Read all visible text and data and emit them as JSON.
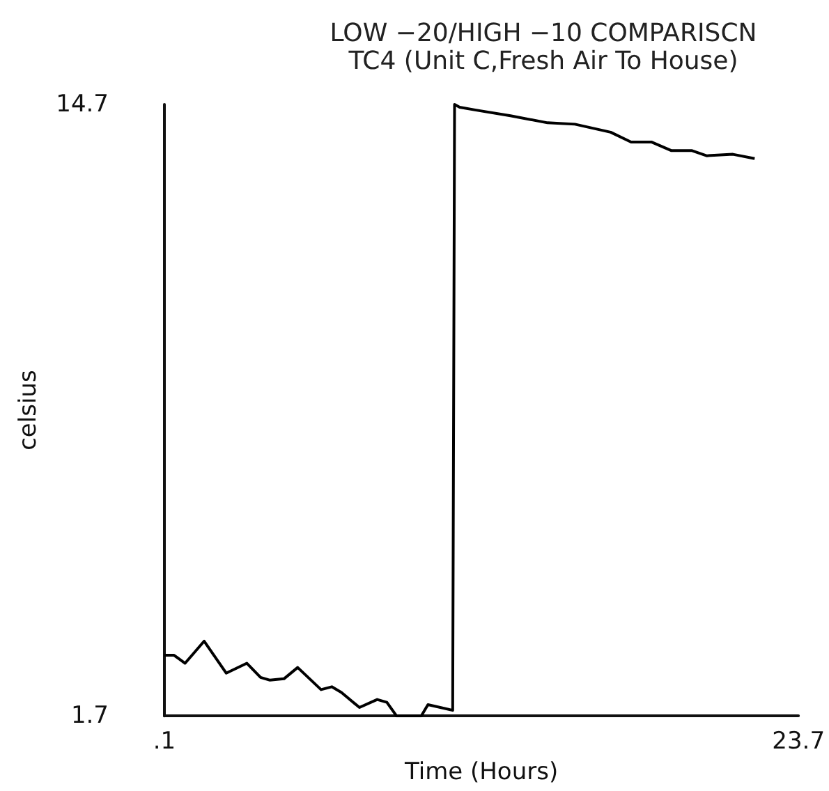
{
  "chart_data": {
    "type": "line",
    "title": "LOW −20/HIGH −10 COMPARISCN",
    "subtitle": "TC4 (Unit C,Fresh Air To House)",
    "xlabel": "Time (Hours)",
    "ylabel": "celsius",
    "xlim": [
      0.1,
      23.7
    ],
    "xticks": [
      {
        "value": 0.1,
        "label": ".1"
      },
      23.7
    ],
    "ylim": [
      1.7,
      14.7
    ],
    "yticks": [
      1.7,
      14.7
    ],
    "grid": false,
    "marker": "none",
    "line_style": "solid",
    "series": [
      {
        "color": "#000000",
        "x": [
          0.1,
          0.46,
          0.87,
          1.58,
          2.4,
          3.17,
          3.68,
          4.03,
          4.55,
          5.06,
          5.93,
          6.33,
          6.69,
          7.36,
          8.02,
          8.38,
          8.74,
          9.4,
          9.66,
          9.91,
          10.83,
          10.9,
          11.09,
          11.7,
          12.98,
          14.36,
          15.38,
          16.71,
          17.47,
          18.24,
          18.96,
          19.72,
          20.28,
          21.26,
          22.07
        ],
        "values": [
          2.99,
          2.99,
          2.82,
          3.29,
          2.61,
          2.82,
          2.52,
          2.46,
          2.49,
          2.73,
          2.26,
          2.32,
          2.2,
          1.88,
          2.05,
          1.99,
          1.7,
          1.7,
          1.7,
          1.94,
          1.82,
          14.7,
          14.64,
          14.58,
          14.46,
          14.31,
          14.28,
          14.11,
          13.9,
          13.9,
          13.72,
          13.72,
          13.61,
          13.64,
          13.55
        ]
      }
    ]
  }
}
